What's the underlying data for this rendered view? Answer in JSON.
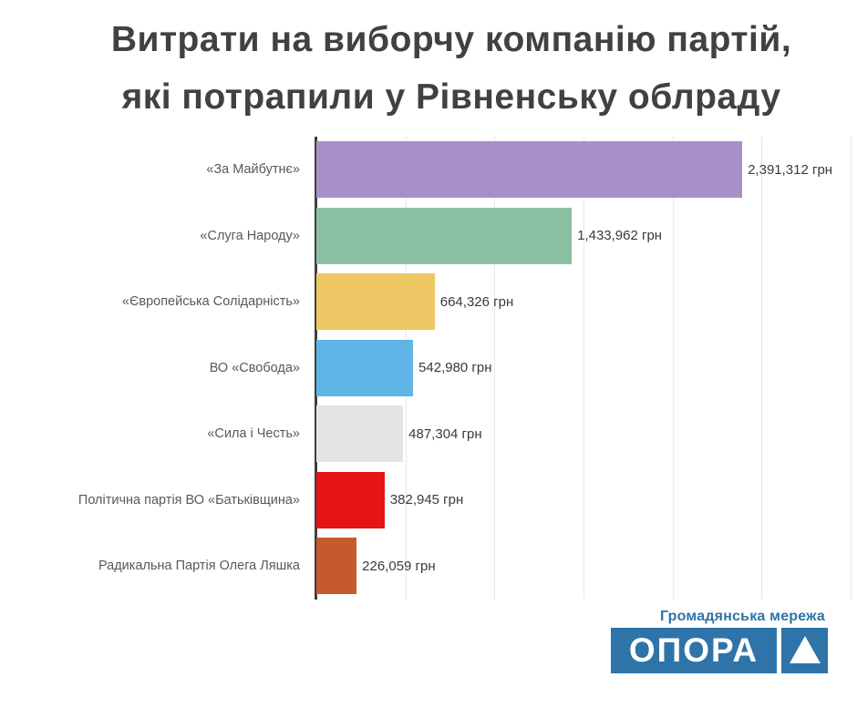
{
  "title": {
    "line1": "Витрати на виборчу компанію партій,",
    "line2": "які потрапили у Рівненську облраду"
  },
  "chart_data": {
    "type": "bar",
    "orientation": "horizontal",
    "title": "Витрати на виборчу компанію партій, які потрапили у Рівненську облраду",
    "xlabel": "",
    "ylabel": "",
    "categories": [
      "«За Майбутнє»",
      "«Слуга Народу»",
      "«Європейська Солідарність»",
      "ВО «Свобода»",
      "«Сила і Честь»",
      "Політична партія ВО «Батьківщина»",
      "Радикальна Партія Олега Ляшка"
    ],
    "values": [
      2391312,
      1433962,
      664326,
      542980,
      487304,
      382945,
      226059
    ],
    "value_labels": [
      "2,391,312 грн",
      "1,433,962 грн",
      "664,326 грн",
      "542,980 грн",
      "487,304 грн",
      "382,945 грн",
      "226,059 грн"
    ],
    "bar_colors": [
      "#a98fc8",
      "#8bc0a5",
      "#eec765",
      "#5fb5e5",
      "#e4e4e4",
      "#e81317",
      "#c75a2d"
    ],
    "unit": "грн",
    "xlim": [
      0,
      3000000
    ],
    "gridline_interval": 500000,
    "grid": true,
    "legend": "none",
    "gridline_color": "#ddebf5",
    "axis_color": "#3e3e3e"
  },
  "footer": {
    "network_label": "Громадянська мережа",
    "logo_text": "ОПОРА",
    "logo_color": "#2e74a8",
    "triangle_icon": "triangle-up"
  }
}
